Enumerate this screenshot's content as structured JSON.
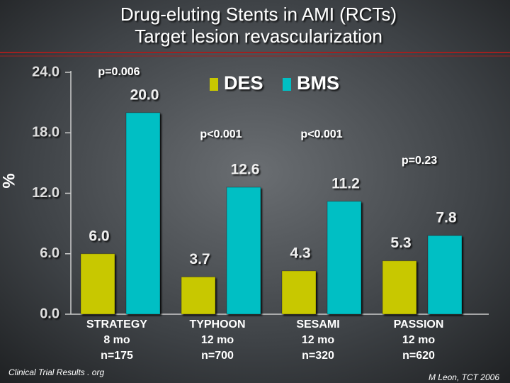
{
  "chart_data": {
    "type": "bar",
    "title": [
      "Drug-eluting Stents in AMI (RCTs)",
      "Target lesion revascularization"
    ],
    "y_label": "%",
    "categories": [
      [
        "STRATEGY",
        "8 mo",
        "n=175"
      ],
      [
        "TYPHOON",
        "12 mo",
        "n=700"
      ],
      [
        "SESAMI",
        "12 mo",
        "n=320"
      ],
      [
        "PASSION",
        "12 mo",
        "n=620"
      ]
    ],
    "series": [
      {
        "name": "DES",
        "color": "#c8c800",
        "values": [
          6,
          3.7,
          4.3,
          5.3
        ],
        "value_labels": [
          "6.0",
          "3.7",
          "4.3",
          "5.3"
        ]
      },
      {
        "name": "BMS",
        "color": "#00bfc4",
        "values": [
          20,
          12.6,
          11.2,
          7.8
        ],
        "value_labels": [
          "20.0",
          "12.6",
          "11.2",
          "7.8"
        ]
      }
    ],
    "p_values": [
      "p=0.006",
      "p<0.001",
      "p<0.001",
      "p=0.23"
    ],
    "ylim": [
      0,
      24
    ],
    "yticks": [
      {
        "value": 0,
        "label": "0.0"
      },
      {
        "value": 6,
        "label": "6.0"
      },
      {
        "value": 12,
        "label": "12.0"
      },
      {
        "value": 18,
        "label": "18.0"
      },
      {
        "value": 24,
        "label": "24.0"
      }
    ],
    "footnotes": [
      "Clinical Trial Results . org",
      "M Leon, TCT 2006"
    ]
  }
}
